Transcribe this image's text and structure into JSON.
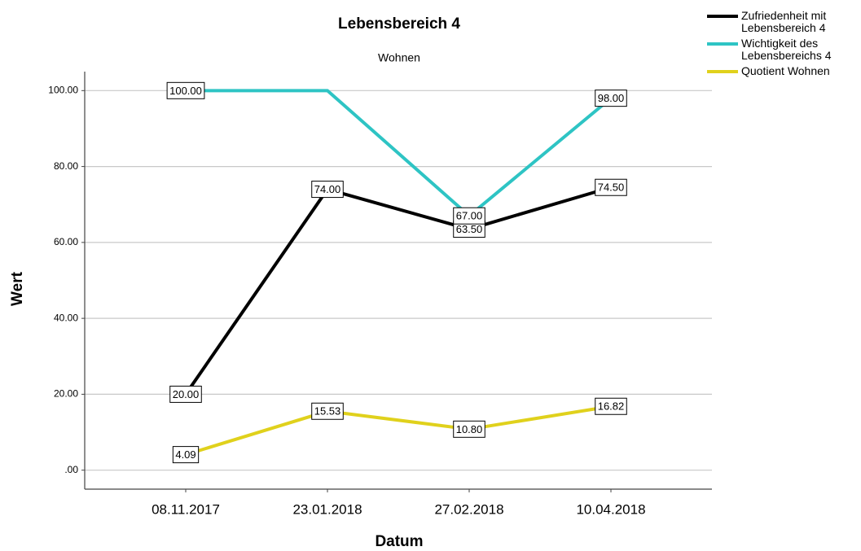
{
  "chart_data": {
    "type": "line",
    "title": "Lebensbereich 4",
    "subtitle": "Wohnen",
    "x_label": "Datum",
    "y_label": "Wert",
    "categories": [
      "08.11.2017",
      "23.01.2018",
      "27.02.2018",
      "10.04.2018"
    ],
    "series": [
      {
        "name": "Zufriedenheit mit Lebensbereich 4",
        "color": "#000000",
        "values": [
          20,
          74,
          63.5,
          74.5
        ],
        "value_labels": [
          "20.00",
          "74.00",
          "63.50",
          "74.50"
        ]
      },
      {
        "name": "Wichtigkeit des Lebensbereichs 4",
        "color": "#2ec4c4",
        "values": [
          100,
          100,
          67,
          98
        ],
        "value_labels": [
          "100.00",
          null,
          "67.00",
          "98.00"
        ]
      },
      {
        "name": "Quotient Wohnen",
        "color": "#e0d11c",
        "values": [
          4.09,
          15.53,
          10.8,
          16.82
        ],
        "value_labels": [
          "4.09",
          "15.53",
          "10.80",
          "16.82"
        ]
      }
    ],
    "ylim": [
      -5,
      105
    ],
    "yticks": [
      {
        "value": 0,
        "label": ".00"
      },
      {
        "value": 20,
        "label": "20.00"
      },
      {
        "value": 40,
        "label": "40.00"
      },
      {
        "value": 60,
        "label": "60.00"
      },
      {
        "value": 80,
        "label": "80.00"
      },
      {
        "value": 100,
        "label": "100.00"
      }
    ],
    "grid": true,
    "legend": "top-right"
  }
}
